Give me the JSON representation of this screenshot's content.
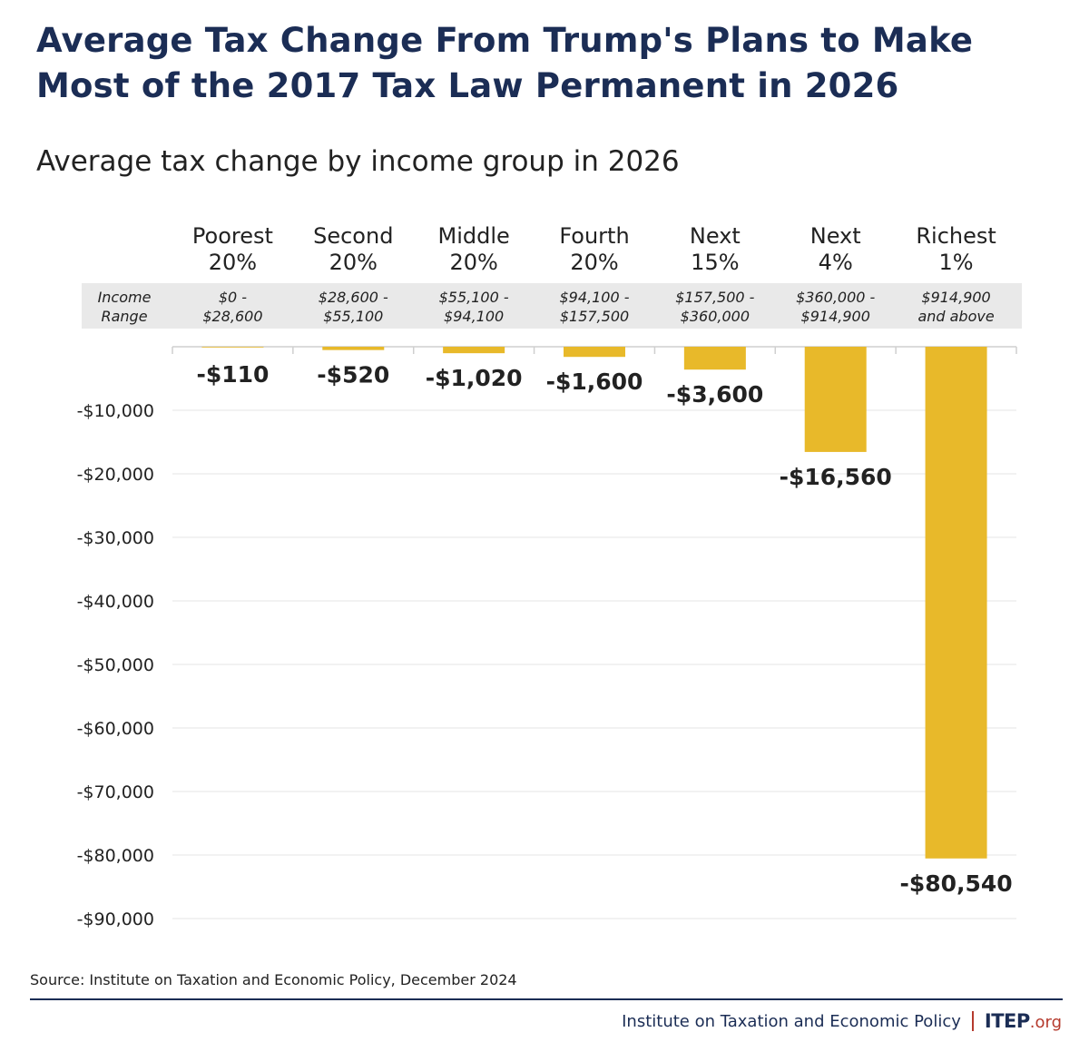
{
  "title": "Average Tax Change From Trump's Plans to Make Most of the 2017 Tax Law Permanent in 2026",
  "subtitle": "Average tax change by income group in 2026",
  "source": "Source: Institute on Taxation and Economic Policy, December 2024",
  "footer": {
    "org": "Institute on Taxation and Economic Policy",
    "logo_main": "ITEP",
    "logo_suffix": ".org"
  },
  "colors": {
    "bar": "#e8b92a",
    "title": "#1b2d55",
    "band": "#e9e9e9",
    "grid": "#e6e6e6",
    "footer_accent": "#b53a2d"
  },
  "chart_data": {
    "type": "bar",
    "income_range_label": [
      "Income",
      "Range"
    ],
    "categories": [
      [
        "Poorest",
        "20%"
      ],
      [
        "Second",
        "20%"
      ],
      [
        "Middle",
        "20%"
      ],
      [
        "Fourth",
        "20%"
      ],
      [
        "Next",
        "15%"
      ],
      [
        "Next",
        "4%"
      ],
      [
        "Richest",
        "1%"
      ]
    ],
    "income_ranges": [
      [
        "$0 -",
        "$28,600"
      ],
      [
        "$28,600 -",
        "$55,100"
      ],
      [
        "$55,100 -",
        "$94,100"
      ],
      [
        "$94,100 -",
        "$157,500"
      ],
      [
        "$157,500 -",
        "$360,000"
      ],
      [
        "$360,000 -",
        "$914,900"
      ],
      [
        "$914,900",
        "and above"
      ]
    ],
    "values": [
      -110,
      -520,
      -1020,
      -1600,
      -3600,
      -16560,
      -80540
    ],
    "data_labels": [
      "-$110",
      "-$520",
      "-$1,020",
      "-$1,600",
      "-$3,600",
      "-$16,560",
      "-$80,540"
    ],
    "yticks": [
      -10000,
      -20000,
      -30000,
      -40000,
      -50000,
      -60000,
      -70000,
      -80000,
      -90000
    ],
    "ytick_labels": [
      "-$10,000",
      "-$20,000",
      "-$30,000",
      "-$40,000",
      "-$50,000",
      "-$60,000",
      "-$70,000",
      "-$80,000",
      "-$90,000"
    ],
    "ylim": [
      -90000,
      0
    ],
    "grid": true
  }
}
